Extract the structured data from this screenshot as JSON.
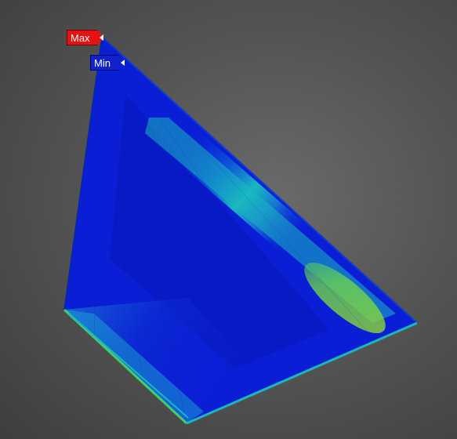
{
  "probes": {
    "max": {
      "label": "Max",
      "color": "#e41212"
    },
    "min": {
      "label": "Min",
      "color": "#1122cc"
    }
  },
  "contour_colors": {
    "low": "#0a1ed6",
    "mid_low": "#0d64d8",
    "mid": "#19b8c0",
    "mid_high": "#3fd06a",
    "high": "#9ad82a"
  },
  "icons": {
    "max_pin": "triangle-pin-icon",
    "min_pin": "triangle-pin-icon"
  }
}
